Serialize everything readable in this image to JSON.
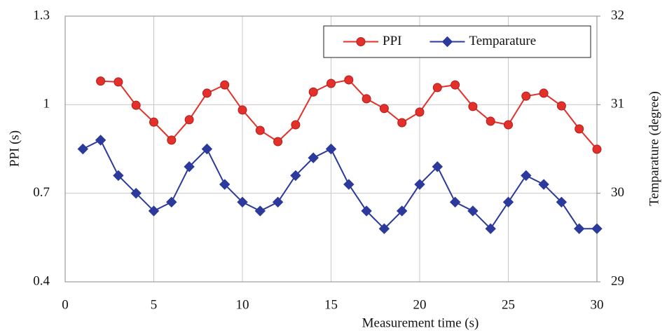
{
  "chart_data": {
    "type": "line",
    "x_label": "Measurement time (s)",
    "y_label": "PPI (s)",
    "y2_label": "Temparature (degree)",
    "x": [
      1,
      2,
      3,
      4,
      5,
      6,
      7,
      8,
      9,
      10,
      11,
      12,
      13,
      14,
      15,
      16,
      17,
      18,
      19,
      20,
      21,
      22,
      23,
      24,
      25,
      26,
      27,
      28,
      29,
      30
    ],
    "xlim": [
      0,
      30
    ],
    "xticks": [
      0,
      5,
      10,
      15,
      20,
      25,
      30
    ],
    "ylim": [
      0.4,
      1.3
    ],
    "yticks": [
      0.4,
      0.7,
      1,
      1.3
    ],
    "y2lim": [
      29,
      32
    ],
    "y2ticks": [
      29,
      30,
      31,
      32
    ],
    "grid": true,
    "legend": "top-right",
    "series": [
      {
        "name": "PPI",
        "color": "#e3302a",
        "marker": "circle",
        "values": [
          null,
          1.08,
          1.077,
          0.998,
          0.941,
          0.88,
          0.949,
          1.039,
          1.067,
          0.982,
          0.913,
          0.875,
          0.932,
          1.043,
          1.072,
          1.084,
          1.02,
          0.987,
          0.939,
          0.975,
          1.058,
          1.067,
          0.994,
          0.944,
          0.932,
          1.029,
          1.039,
          0.996,
          0.918,
          0.849
        ]
      },
      {
        "name": "Temparature",
        "color": "#2b3a9b",
        "marker": "diamond",
        "axis": "y2",
        "values": [
          30.5,
          30.6,
          30.2,
          30.0,
          29.8,
          29.9,
          30.3,
          30.5,
          30.1,
          29.9,
          29.8,
          29.9,
          30.2,
          30.4,
          30.5,
          30.1,
          29.8,
          29.6,
          29.8,
          30.1,
          30.3,
          29.9,
          29.8,
          29.6,
          29.9,
          30.2,
          30.1,
          29.9,
          29.6,
          29.6
        ]
      }
    ]
  }
}
